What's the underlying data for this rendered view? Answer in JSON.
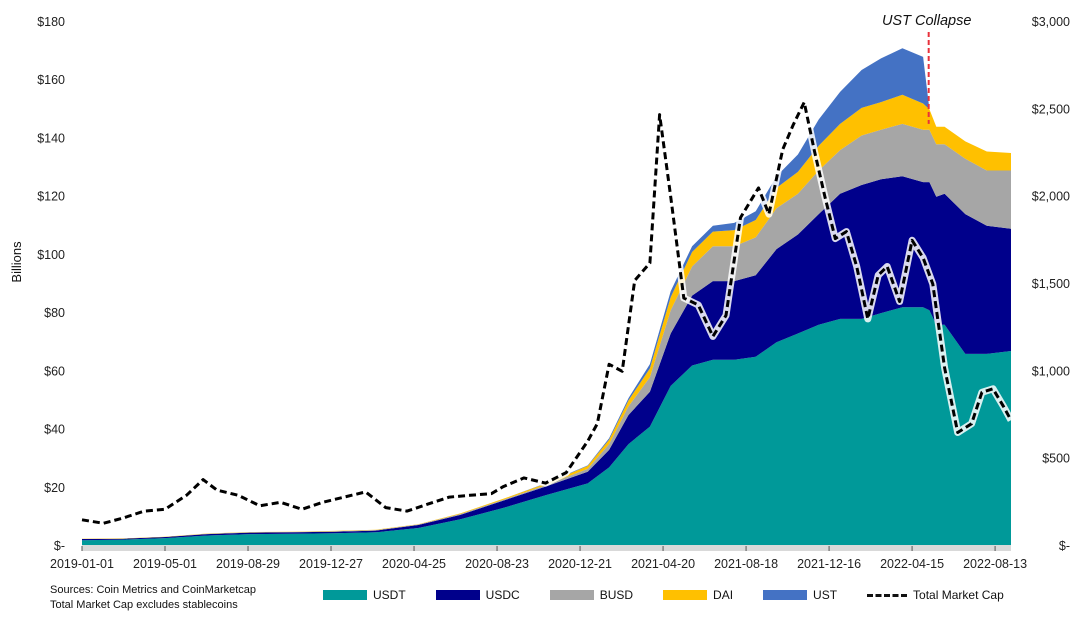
{
  "chart_data": {
    "type": "area",
    "annotation": "UST Collapse",
    "ylabel": "Billions",
    "x_ticks": [
      "2019-01-01",
      "2019-05-01",
      "2019-08-29",
      "2019-12-27",
      "2020-04-25",
      "2020-08-23",
      "2020-12-21",
      "2021-04-20",
      "2021-08-18",
      "2021-12-16",
      "2022-04-15",
      "2022-08-13"
    ],
    "x_range": [
      "2019-01-01",
      "2022-09-05"
    ],
    "annotation_date": "2022-05-09",
    "y_left": {
      "min": 0,
      "max": 180,
      "ticks": [
        "$-",
        "$20",
        "$40",
        "$60",
        "$80",
        "$100",
        "$120",
        "$140",
        "$160",
        "$180"
      ]
    },
    "y_right": {
      "min": 0,
      "max": 3000,
      "ticks": [
        "$-",
        "$500",
        "$1,000",
        "$1,500",
        "$2,000",
        "$2,500",
        "$3,000"
      ]
    },
    "grid": false,
    "legend_position": "bottom",
    "x": [
      "2019-01-01",
      "2019-03-01",
      "2019-05-01",
      "2019-07-01",
      "2019-09-01",
      "2019-11-01",
      "2020-01-01",
      "2020-03-01",
      "2020-05-01",
      "2020-07-01",
      "2020-09-01",
      "2020-11-01",
      "2021-01-01",
      "2021-02-01",
      "2021-03-01",
      "2021-04-01",
      "2021-05-01",
      "2021-06-01",
      "2021-07-01",
      "2021-08-01",
      "2021-09-01",
      "2021-10-01",
      "2021-11-01",
      "2021-12-01",
      "2022-01-01",
      "2022-02-01",
      "2022-03-01",
      "2022-04-01",
      "2022-05-01",
      "2022-05-10",
      "2022-05-20",
      "2022-06-01",
      "2022-07-01",
      "2022-08-01",
      "2022-09-05"
    ],
    "series": [
      {
        "name": "USDT",
        "color": "#009999",
        "values": [
          2,
          2.2,
          2.7,
          3.6,
          4.1,
          4.2,
          4.4,
          4.7,
          6.2,
          9.2,
          13.1,
          17.4,
          21.5,
          27,
          35,
          41,
          55,
          62,
          64,
          64,
          65,
          70,
          73,
          76,
          78,
          78,
          80,
          82,
          82,
          81,
          76,
          76,
          66,
          66,
          67
        ]
      },
      {
        "name": "USDC",
        "color": "#00008B",
        "values": [
          0.4,
          0.3,
          0.4,
          0.5,
          0.5,
          0.5,
          0.5,
          0.6,
          1,
          1.5,
          2.5,
          3,
          4,
          6,
          10,
          12,
          18,
          24,
          27,
          27,
          28,
          32,
          34,
          38,
          43,
          46,
          46,
          45,
          43,
          44,
          44,
          45,
          48,
          44,
          42
        ]
      },
      {
        "name": "BUSD",
        "color": "#A6A6A6",
        "values": [
          0,
          0,
          0,
          0.1,
          0.1,
          0.1,
          0.2,
          0.2,
          0.2,
          0.3,
          0.3,
          0.5,
          1,
          2,
          3,
          5,
          8,
          10,
          12,
          12,
          13,
          14,
          14,
          15,
          15,
          17,
          17,
          18,
          18,
          18,
          18,
          17,
          19,
          19,
          20
        ]
      },
      {
        "name": "DAI",
        "color": "#FFC000",
        "values": [
          0.1,
          0.1,
          0.1,
          0.1,
          0.1,
          0.1,
          0.1,
          0.1,
          0.1,
          0.2,
          0.3,
          0.5,
          1,
          1.5,
          2,
          3,
          4.5,
          5,
          5,
          5.5,
          6,
          7,
          7.5,
          8.5,
          9,
          9.5,
          9.5,
          10,
          9,
          7,
          6,
          6,
          6,
          6.5,
          6
        ]
      },
      {
        "name": "UST",
        "color": "#4472C4",
        "values": [
          0,
          0,
          0,
          0,
          0,
          0,
          0,
          0,
          0,
          0,
          0,
          0.1,
          0.2,
          0.5,
          0.8,
          1.5,
          2,
          2,
          2,
          2.5,
          3,
          4,
          6,
          9,
          11,
          13,
          15,
          16,
          16,
          0,
          0,
          0,
          0,
          0,
          0
        ]
      },
      {
        "name": "Total Market Cap",
        "color": "#000000",
        "axis": "right",
        "style": "dashed",
        "x": [
          "2019-01-01",
          "2019-02-01",
          "2019-03-01",
          "2019-04-01",
          "2019-05-01",
          "2019-06-01",
          "2019-06-25",
          "2019-07-15",
          "2019-08-15",
          "2019-09-15",
          "2019-10-15",
          "2019-11-15",
          "2019-12-15",
          "2020-01-15",
          "2020-02-15",
          "2020-03-15",
          "2020-04-15",
          "2020-05-15",
          "2020-06-15",
          "2020-07-15",
          "2020-08-15",
          "2020-09-01",
          "2020-10-01",
          "2020-11-01",
          "2020-12-01",
          "2021-01-01",
          "2021-01-15",
          "2021-02-01",
          "2021-02-20",
          "2021-03-10",
          "2021-04-01",
          "2021-04-15",
          "2021-05-01",
          "2021-05-20",
          "2021-06-10",
          "2021-07-01",
          "2021-07-20",
          "2021-08-10",
          "2021-09-05",
          "2021-09-20",
          "2021-10-10",
          "2021-10-25",
          "2021-11-10",
          "2021-11-25",
          "2021-12-10",
          "2021-12-25",
          "2022-01-10",
          "2022-01-25",
          "2022-02-10",
          "2022-02-25",
          "2022-03-10",
          "2022-03-28",
          "2022-04-15",
          "2022-05-01",
          "2022-05-15",
          "2022-06-01",
          "2022-06-20",
          "2022-07-10",
          "2022-07-25",
          "2022-08-10",
          "2022-08-25",
          "2022-09-05"
        ],
        "values": [
          150,
          130,
          160,
          200,
          210,
          290,
          380,
          320,
          290,
          230,
          250,
          210,
          250,
          280,
          310,
          220,
          200,
          240,
          280,
          290,
          300,
          340,
          390,
          360,
          420,
          600,
          700,
          1040,
          1000,
          1520,
          1620,
          2470,
          2000,
          1420,
          1380,
          1200,
          1320,
          1880,
          2050,
          1900,
          2270,
          2410,
          2540,
          2260,
          2000,
          1760,
          1800,
          1600,
          1300,
          1550,
          1600,
          1400,
          1750,
          1650,
          1500,
          1020,
          650,
          700,
          880,
          900,
          800,
          720
        ]
      }
    ]
  },
  "notes": {
    "line1": "Sources: Coin Metrics and CoinMarketcap",
    "line2": "Total Market Cap excludes stablecoins"
  },
  "legend": [
    {
      "label": "USDT",
      "color": "#009999",
      "kind": "area"
    },
    {
      "label": "USDC",
      "color": "#00008B",
      "kind": "area"
    },
    {
      "label": "BUSD",
      "color": "#A6A6A6",
      "kind": "area"
    },
    {
      "label": "DAI",
      "color": "#FFC000",
      "kind": "area"
    },
    {
      "label": "UST",
      "color": "#4472C4",
      "kind": "area"
    },
    {
      "label": "Total Market Cap",
      "color": "#000000",
      "kind": "dashed-line"
    }
  ]
}
